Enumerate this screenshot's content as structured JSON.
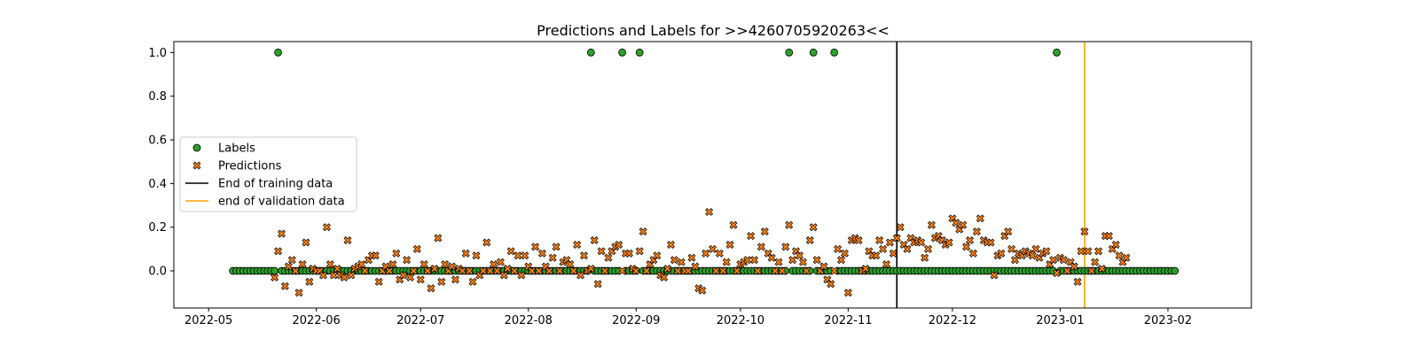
{
  "chart_data": {
    "type": "scatter",
    "title": "Predictions and Labels for >>4260705920263<<",
    "xlabel": "",
    "ylabel": "",
    "x_range": [
      "2022-04-21",
      "2023-02-25"
    ],
    "ylim": [
      -0.17,
      1.05
    ],
    "x_ticks": [
      "2022-05",
      "2022-06",
      "2022-07",
      "2022-08",
      "2022-09",
      "2022-10",
      "2022-11",
      "2022-12",
      "2023-01",
      "2023-02"
    ],
    "y_ticks": [
      "0.0",
      "0.2",
      "0.4",
      "0.6",
      "0.8",
      "1.0"
    ],
    "grid": false,
    "legend_position": "center-left",
    "legend": [
      {
        "name": "Labels",
        "kind": "circle-marker",
        "color": "#2ca02c"
      },
      {
        "name": "Predictions",
        "kind": "x-marker",
        "color": "#ff7f0e"
      },
      {
        "name": "End of training data",
        "kind": "line",
        "color": "#000000"
      },
      {
        "name": "end of validation data",
        "kind": "line",
        "color": "#ffa500"
      }
    ],
    "vertical_lines": [
      {
        "name": "End of training data",
        "x": "2022-11-15",
        "color": "#000000"
      },
      {
        "name": "end of validation data",
        "x": "2023-01-08",
        "color": "#ffa500"
      }
    ],
    "labels_series": {
      "name": "Labels",
      "start": "2022-05-08",
      "end": "2023-02-03",
      "baseline": 0,
      "ones": [
        "2022-05-21",
        "2022-08-19",
        "2022-08-28",
        "2022-09-02",
        "2022-10-15",
        "2022-10-22",
        "2022-10-28",
        "2022-12-31"
      ]
    },
    "predictions_series": {
      "name": "Predictions",
      "start": "2022-05-20",
      "values": [
        -0.03,
        0.09,
        0.17,
        -0.07,
        0.02,
        0.05,
        0.0,
        -0.1,
        0.03,
        0.13,
        -0.05,
        0.01,
        0.0,
        0.0,
        -0.02,
        0.2,
        0.03,
        -0.02,
        0.01,
        -0.02,
        -0.03,
        0.14,
        -0.02,
        0.01,
        0.02,
        0.03,
        0.0,
        0.05,
        0.07,
        0.07,
        -0.05,
        0.0,
        0.02,
        0.0,
        0.03,
        0.08,
        -0.04,
        -0.02,
        0.05,
        -0.03,
        0.0,
        0.1,
        -0.04,
        0.03,
        0.0,
        -0.08,
        0.01,
        0.15,
        -0.05,
        0.03,
        0.0,
        0.02,
        -0.04,
        0.01,
        0.0,
        0.08,
        0.0,
        -0.05,
        0.07,
        -0.02,
        0.0,
        0.13,
        0.0,
        0.03,
        0.0,
        0.04,
        -0.02,
        0.01,
        0.09,
        0.0,
        0.07,
        -0.02,
        0.07,
        0.02,
        0.0,
        0.11,
        0.0,
        0.08,
        0.02,
        0.0,
        0.06,
        0.11,
        0.0,
        0.04,
        0.05,
        0.03,
        0.0,
        0.12,
        -0.02,
        0.07,
        0.0,
        0.01,
        0.14,
        -0.06,
        0.09,
        0.0,
        0.06,
        0.09,
        0.11,
        0.12,
        0.0,
        0.08,
        0.08,
        0.01,
        0.0,
        0.09,
        0.18,
        0.0,
        0.03,
        0.05,
        0.07,
        -0.02,
        -0.03,
        0.01,
        0.12,
        0.05,
        0.0,
        0.04,
        0.0,
        0.0,
        0.06,
        0.02,
        -0.08,
        -0.09,
        0.08,
        0.27,
        0.1,
        0.0,
        0.08,
        0.0,
        0.04,
        0.12,
        0.21,
        0.0,
        0.03,
        0.04,
        0.05,
        0.16,
        0.05,
        0.0,
        0.11,
        0.18,
        0.08,
        0.06,
        0.0,
        0.04,
        0.0,
        0.11,
        0.21,
        0.05,
        0.09,
        0.07,
        0.04,
        0.0,
        0.14,
        0.2,
        0.05,
        0.0,
        0.02,
        -0.04,
        -0.06,
        0.0,
        0.1,
        0.05,
        0.08,
        -0.1,
        0.14,
        0.15,
        0.14,
        0.0,
        0.01,
        0.09,
        0.07,
        0.07,
        0.14,
        0.1,
        0.03,
        0.13,
        0.08,
        0.15,
        0.2,
        0.12,
        0.1,
        0.15,
        0.13,
        0.14,
        0.13,
        0.06,
        0.1,
        0.21,
        0.15,
        0.16,
        0.14,
        0.12,
        0.13,
        0.24,
        0.22,
        0.19,
        0.21,
        0.11,
        0.14,
        0.08,
        0.18,
        0.24,
        0.14,
        0.13,
        0.13,
        -0.02,
        0.07,
        0.08,
        0.16,
        0.18,
        0.1,
        0.05,
        0.08,
        0.07,
        0.09,
        0.08,
        0.07,
        0.1,
        0.06,
        0.08,
        0.09,
        0.03,
        0.05,
        -0.01,
        0.06,
        0.05,
        0.0,
        0.04,
        0.02,
        -0.05,
        0.09,
        0.18,
        0.09,
        0.0,
        0.04,
        0.09,
        0.01,
        0.16,
        0.16,
        0.1,
        0.12,
        0.07,
        0.04,
        0.06
      ]
    }
  }
}
